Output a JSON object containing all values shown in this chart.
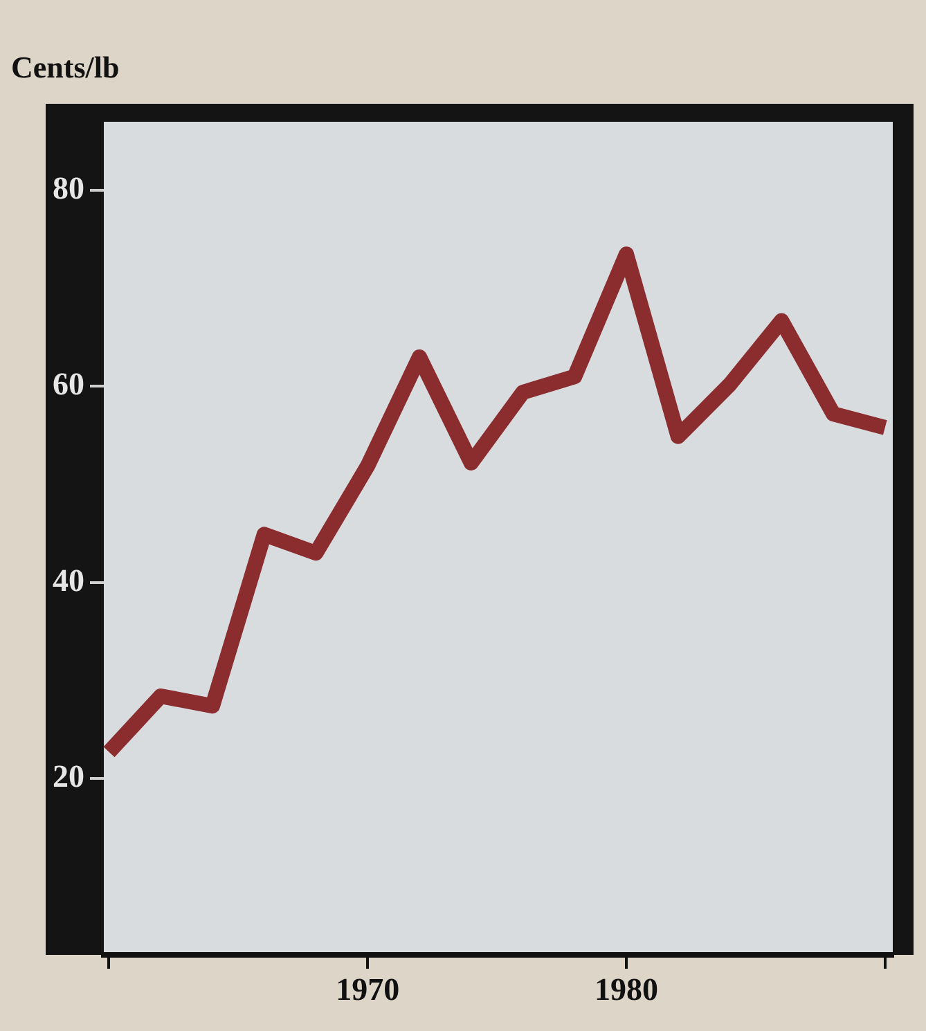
{
  "chart_data": {
    "type": "line",
    "ylabel": "Cents/lb",
    "x": [
      1960,
      1962,
      1964,
      1966,
      1968,
      1970,
      1972,
      1974,
      1976,
      1978,
      1980,
      1982,
      1984,
      1986,
      1988,
      1990
    ],
    "series": [
      {
        "color": "#8b2c2e",
        "values": [
          22.7,
          28.4,
          27.4,
          44.9,
          43.0,
          51.9,
          63.0,
          52.2,
          59.4,
          61.0,
          73.5,
          54.9,
          60.2,
          66.7,
          57.2,
          55.8
        ]
      }
    ],
    "xlim": [
      1959.8,
      1990.3
    ],
    "xticks": [
      {
        "value": 1960,
        "label": null
      },
      1970,
      1980,
      {
        "value": 1990,
        "label": null
      }
    ],
    "ylim": [
      2,
      87
    ],
    "yticks": [
      20,
      40,
      60,
      80
    ],
    "grid": false,
    "legend": false,
    "marker": "none",
    "line_style": "solid"
  }
}
